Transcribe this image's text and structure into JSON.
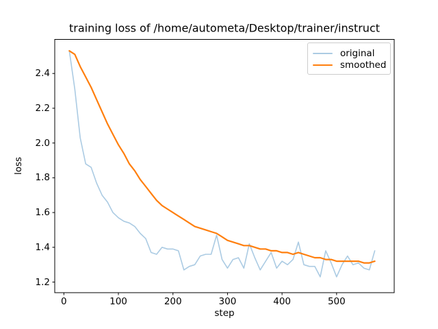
{
  "figure": {
    "background": "#ffffff",
    "text_color": "#000000",
    "spine_color": "#000000"
  },
  "chart_data": {
    "type": "line",
    "title": "training loss of /home/autometa/Desktop/trainer/instruct",
    "xlabel": "step",
    "ylabel": "loss",
    "grid": false,
    "legend": {
      "position": "upper right",
      "entries": [
        "original",
        "smoothed"
      ]
    },
    "xlim": [
      -16.7,
      605.6
    ],
    "ylim": [
      1.139,
      2.596
    ],
    "xtick_values": [
      0,
      100,
      200,
      300,
      400,
      500
    ],
    "xtick_labels": [
      "0",
      "100",
      "200",
      "300",
      "400",
      "500"
    ],
    "ytick_values": [
      1.2,
      1.4,
      1.6,
      1.8,
      2.0,
      2.2,
      2.4
    ],
    "ytick_labels": [
      "1.2",
      "1.4",
      "1.6",
      "1.8",
      "2.0",
      "2.2",
      "2.4"
    ],
    "x": [
      10,
      20,
      30,
      40,
      50,
      60,
      70,
      80,
      90,
      100,
      110,
      120,
      130,
      140,
      150,
      160,
      170,
      180,
      190,
      200,
      210,
      220,
      230,
      240,
      250,
      260,
      270,
      280,
      290,
      300,
      310,
      320,
      330,
      340,
      350,
      360,
      370,
      380,
      390,
      400,
      410,
      420,
      430,
      440,
      450,
      460,
      470,
      480,
      490,
      500,
      510,
      520,
      530,
      540,
      550,
      560,
      570
    ],
    "series": [
      {
        "name": "original",
        "color": "#abcbe3",
        "line_width": 1.6,
        "values": [
          2.53,
          2.31,
          2.03,
          1.88,
          1.86,
          1.77,
          1.7,
          1.66,
          1.6,
          1.57,
          1.55,
          1.54,
          1.52,
          1.48,
          1.45,
          1.37,
          1.36,
          1.4,
          1.39,
          1.39,
          1.38,
          1.27,
          1.29,
          1.3,
          1.35,
          1.36,
          1.36,
          1.47,
          1.33,
          1.28,
          1.33,
          1.34,
          1.28,
          1.42,
          1.34,
          1.27,
          1.32,
          1.37,
          1.28,
          1.32,
          1.3,
          1.33,
          1.43,
          1.3,
          1.29,
          1.29,
          1.23,
          1.38,
          1.31,
          1.23,
          1.3,
          1.35,
          1.3,
          1.31,
          1.28,
          1.27,
          1.38
        ]
      },
      {
        "name": "smoothed",
        "color": "#ff7f0e",
        "line_width": 2.2,
        "values": [
          2.53,
          2.51,
          2.44,
          2.38,
          2.32,
          2.25,
          2.18,
          2.11,
          2.05,
          1.99,
          1.94,
          1.88,
          1.84,
          1.79,
          1.75,
          1.71,
          1.67,
          1.64,
          1.62,
          1.6,
          1.58,
          1.56,
          1.54,
          1.52,
          1.51,
          1.5,
          1.49,
          1.48,
          1.46,
          1.44,
          1.43,
          1.42,
          1.41,
          1.41,
          1.4,
          1.39,
          1.39,
          1.38,
          1.38,
          1.37,
          1.37,
          1.36,
          1.37,
          1.36,
          1.35,
          1.34,
          1.34,
          1.33,
          1.33,
          1.32,
          1.32,
          1.32,
          1.32,
          1.32,
          1.31,
          1.31,
          1.32
        ]
      }
    ]
  }
}
